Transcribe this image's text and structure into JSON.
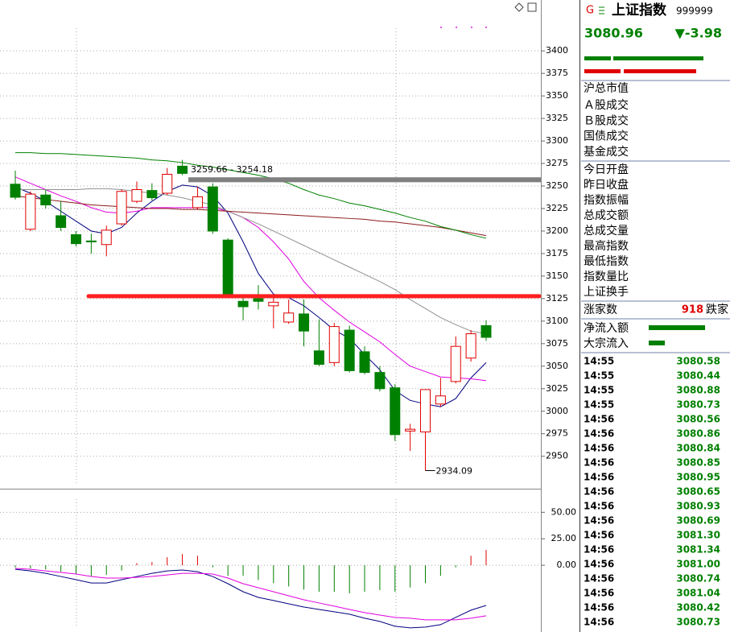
{
  "chart_data": [
    {
      "type": "candlestick",
      "ylim": [
        2914,
        3452
      ],
      "yticks": [
        3400,
        3375,
        3350,
        3325,
        3300,
        3275,
        3250,
        3225,
        3200,
        3175,
        3150,
        3125,
        3100,
        3075,
        3050,
        3025,
        3000,
        2975,
        2950
      ],
      "open": [
        3252,
        3202,
        3240,
        3217,
        3196,
        3189,
        3185,
        3208,
        3233,
        3245,
        3242,
        3272,
        3226,
        3249,
        3190,
        3122,
        3125,
        3117,
        3099,
        3108,
        3067,
        3054,
        3090,
        3066,
        3043,
        3026,
        2978,
        2977,
        3008,
        3033,
        3059,
        3095
      ],
      "high": [
        3267,
        3244,
        3246,
        3233,
        3200,
        3197,
        3206,
        3246,
        3255,
        3253,
        3270,
        3279,
        3249,
        3253,
        3192,
        3130,
        3140,
        3128,
        3124,
        3124,
        3102,
        3098,
        3095,
        3072,
        3050,
        3030,
        2986,
        3024,
        3037,
        3083,
        3090,
        3101
      ],
      "low": [
        3235,
        3200,
        3225,
        3200,
        3183,
        3175,
        3172,
        3206,
        3231,
        3234,
        3240,
        3262,
        3224,
        3197,
        3127,
        3101,
        3113,
        3092,
        3097,
        3072,
        3050,
        3050,
        3043,
        3041,
        3022,
        2967,
        2956,
        2934.09,
        3005,
        3031,
        3055,
        3078
      ],
      "close": [
        3237.5,
        3241,
        3229,
        3204,
        3186,
        3188,
        3201,
        3244,
        3246,
        3237,
        3263,
        3264,
        3238,
        3200,
        3129,
        3116,
        3122,
        3121,
        3109,
        3089,
        3052,
        3094,
        3045,
        3043,
        3025,
        2974,
        2980,
        3024,
        3017,
        3072,
        3086,
        3082
      ],
      "up_color": "#e00000",
      "down_color": "#008000",
      "series": [
        {
          "color": "#000080",
          "values": [
            3249,
            3242,
            3233,
            3222,
            3211,
            3200,
            3197,
            3204,
            3220,
            3233,
            3244,
            3251,
            3249,
            3239,
            3220,
            3188,
            3153,
            3130,
            3126,
            3117,
            3104,
            3090,
            3081,
            3063,
            3046,
            3023,
            3012,
            3008,
            3005,
            3014,
            3037,
            3054
          ]
        },
        {
          "color": "#e000e0",
          "values": [
            3260,
            3253,
            3246,
            3239,
            3233,
            3226,
            3221,
            3220,
            3222,
            3226,
            3226,
            3226,
            3226,
            3226,
            3222,
            3215,
            3204,
            3188,
            3169,
            3144,
            3126,
            3112,
            3099,
            3088,
            3077,
            3063,
            3050,
            3044,
            3038,
            3037,
            3036,
            3034
          ]
        },
        {
          "color": "#909090",
          "values": [
            3246,
            3246,
            3246,
            3246,
            3246,
            3247,
            3247,
            3246,
            3244,
            3242,
            3240,
            3237,
            3233,
            3229,
            3222,
            3215,
            3208,
            3200,
            3192,
            3184,
            3176,
            3168,
            3160,
            3152,
            3144,
            3135,
            3124,
            3114,
            3104,
            3096,
            3089,
            3086
          ]
        },
        {
          "color": "#8b1a1a",
          "values": [
            3239,
            3237,
            3235,
            3233,
            3231,
            3229,
            3228,
            3227,
            3226,
            3225,
            3225,
            3224,
            3224,
            3223,
            3222,
            3221,
            3220,
            3219,
            3218,
            3217,
            3216,
            3215,
            3214,
            3213,
            3211,
            3210,
            3208,
            3206,
            3204,
            3201,
            3198,
            3195
          ]
        },
        {
          "color": "#008000",
          "values": [
            3287,
            3287,
            3286,
            3286,
            3285,
            3284,
            3283,
            3282,
            3281,
            3279,
            3278,
            3276,
            3273,
            3271,
            3268,
            3265,
            3262,
            3258,
            3253,
            3246,
            3240,
            3236,
            3231,
            3228,
            3224,
            3220,
            3215,
            3211,
            3205,
            3201,
            3196,
            3192
          ]
        }
      ],
      "hline": {
        "value": 3127.7,
        "color": "#ff2020"
      },
      "gap": {
        "label": "3259.66 - 3254.18",
        "high": 3259.66,
        "low": 3254.18,
        "color": "#808080"
      },
      "grid": true
    },
    {
      "type": "macd",
      "ylim": [
        -63,
        70
      ],
      "yticks": [
        {
          "value": 50,
          "label": "50.00"
        },
        {
          "value": 25,
          "label": "25.00"
        },
        {
          "value": 0,
          "label": "0.00"
        }
      ],
      "values": [
        -2,
        -3,
        -4,
        -6,
        -8,
        -10,
        -9,
        -5,
        2,
        3,
        7.6,
        10.6,
        9,
        -2,
        -10,
        -10,
        -14,
        -17,
        -20,
        -23,
        -25,
        -25,
        -26.5,
        -25,
        -23.5,
        -25,
        -21,
        -17,
        -10,
        -2,
        9,
        14.4
      ],
      "up_color": "#e00000",
      "down_color": "#008000",
      "series": [
        {
          "color": "#000080",
          "values": [
            -3.8,
            -5.3,
            -7.6,
            -10.6,
            -13.6,
            -16.7,
            -16.7,
            -13.6,
            -10.6,
            -7.6,
            -5.3,
            -4.5,
            -6.1,
            -10.6,
            -17.4,
            -25,
            -30.3,
            -33.3,
            -36.4,
            -39.4,
            -41.7,
            -43.9,
            -46.2,
            -50,
            -53,
            -57.6,
            -59.1,
            -58.3,
            -56.1,
            -49.2,
            -42.4,
            -37.9
          ]
        },
        {
          "color": "#e000e0",
          "values": [
            -3,
            -3.8,
            -5.3,
            -6.8,
            -8.3,
            -10.6,
            -12.1,
            -12.1,
            -11.4,
            -10.6,
            -9.1,
            -7.6,
            -7.6,
            -8.3,
            -12.1,
            -17.4,
            -21.2,
            -25,
            -28.8,
            -32.6,
            -35.6,
            -38.6,
            -41.7,
            -44.7,
            -47,
            -49.2,
            -50,
            -51.5,
            -51.5,
            -51.5,
            -50,
            -47.7
          ]
        }
      ],
      "grid": true
    }
  ],
  "quote": {
    "badge": "G",
    "name": "上证指数",
    "code": "999999",
    "price": "3080.96",
    "change": "▼-3.98",
    "group1": [
      "沪总市值"
    ],
    "group2": [
      "Ａ股成交",
      "Ｂ股成交",
      "国债成交",
      "基金成交"
    ],
    "group3": [
      "今日开盘",
      "昨日收盘",
      "指数振幅",
      "总成交额",
      "总成交量",
      "最高指数",
      "最低指数",
      "指数量比",
      "上证换手"
    ],
    "breadth": {
      "up_label": "涨家数",
      "up": "918",
      "down_label": "跌家"
    },
    "flows": [
      "净流入额",
      "大宗流入"
    ],
    "ticks": [
      [
        "14:55",
        "3080.58"
      ],
      [
        "14:55",
        "3080.44"
      ],
      [
        "14:55",
        "3080.88"
      ],
      [
        "14:55",
        "3080.73"
      ],
      [
        "14:56",
        "3080.56"
      ],
      [
        "14:56",
        "3080.86"
      ],
      [
        "14:56",
        "3080.84"
      ],
      [
        "14:56",
        "3080.85"
      ],
      [
        "14:56",
        "3080.95"
      ],
      [
        "14:56",
        "3080.65"
      ],
      [
        "14:56",
        "3080.93"
      ],
      [
        "14:56",
        "3080.69"
      ],
      [
        "14:56",
        "3081.30"
      ],
      [
        "14:56",
        "3081.34"
      ],
      [
        "14:56",
        "3081.00"
      ],
      [
        "14:56",
        "3080.74"
      ],
      [
        "14:56",
        "3081.04"
      ],
      [
        "14:56",
        "3080.42"
      ],
      [
        "14:56",
        "3080.73"
      ]
    ]
  }
}
